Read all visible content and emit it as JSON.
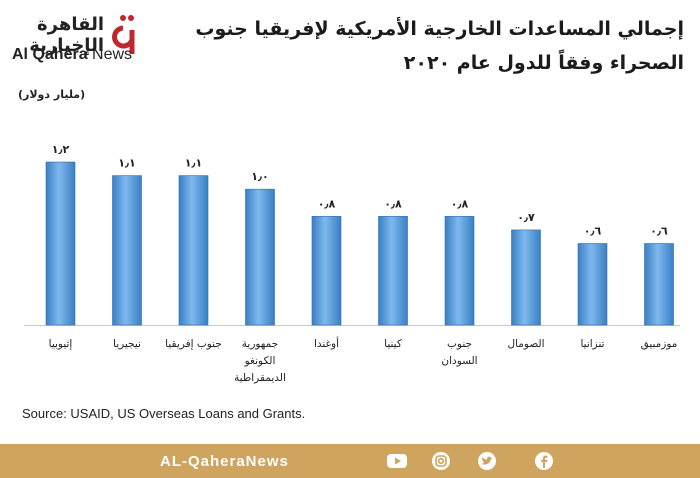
{
  "branding": {
    "logo_ar": "القاهرة الإخبارية",
    "logo_en_1": "Al Qahera",
    "logo_en_2": "News",
    "footer_handle": "AL-QaheraNews",
    "brand_color": "#c0272d",
    "footer_color": "#cfa45e"
  },
  "social_icons": [
    "youtube-icon",
    "instagram-icon",
    "twitter-icon",
    "facebook-icon"
  ],
  "source": "Source: USAID, US Overseas Loans and Grants.",
  "chart_data": {
    "type": "bar",
    "title_line1": "إجمالي المساعدات الخارجية الأمريكية لإفريقيا جنوب",
    "title_line2": "الصحراء وفقاً للدول عام ٢٠٢٠",
    "unit_label": "(مليار دولار)",
    "categories": [
      [
        "إثيوبيا"
      ],
      [
        "نيجيريا"
      ],
      [
        "جنوب إفريقيا"
      ],
      [
        "جمهورية",
        "الكونغو",
        "الديمقراطية"
      ],
      [
        "أوغندا"
      ],
      [
        "كينيا"
      ],
      [
        "جنوب",
        "السودان"
      ],
      [
        "الصومال"
      ],
      [
        "تنزانيا"
      ],
      [
        "موزمبيق"
      ]
    ],
    "values": [
      1.2,
      1.1,
      1.1,
      1.0,
      0.8,
      0.8,
      0.8,
      0.7,
      0.6,
      0.6
    ],
    "value_labels": [
      "١٫٢",
      "١٫١",
      "١٫١",
      "١٫٠",
      "٠٫٨",
      "٠٫٨",
      "٠٫٨",
      "٠٫٧",
      "٠٫٦",
      "٠٫٦"
    ],
    "ylim": [
      0,
      1.2
    ],
    "bar_color": "#4f94d6",
    "grid": false
  }
}
